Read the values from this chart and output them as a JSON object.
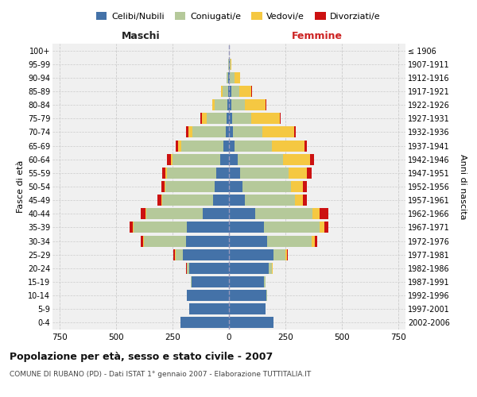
{
  "age_groups": [
    "0-4",
    "5-9",
    "10-14",
    "15-19",
    "20-24",
    "25-29",
    "30-34",
    "35-39",
    "40-44",
    "45-49",
    "50-54",
    "55-59",
    "60-64",
    "65-69",
    "70-74",
    "75-79",
    "80-84",
    "85-89",
    "90-94",
    "95-99",
    "100+"
  ],
  "birth_years": [
    "2002-2006",
    "1997-2001",
    "1992-1996",
    "1987-1991",
    "1982-1986",
    "1977-1981",
    "1972-1976",
    "1967-1971",
    "1962-1966",
    "1957-1961",
    "1952-1956",
    "1947-1951",
    "1942-1946",
    "1937-1941",
    "1932-1936",
    "1927-1931",
    "1922-1926",
    "1917-1921",
    "1912-1916",
    "1907-1911",
    "≤ 1906"
  ],
  "male": {
    "celibi": [
      215,
      175,
      185,
      165,
      175,
      205,
      190,
      185,
      115,
      70,
      65,
      55,
      40,
      25,
      15,
      10,
      8,
      4,
      2,
      0,
      0
    ],
    "coniugati": [
      0,
      0,
      2,
      2,
      10,
      30,
      185,
      235,
      250,
      225,
      215,
      220,
      210,
      185,
      145,
      90,
      55,
      25,
      8,
      2,
      0
    ],
    "vedovi": [
      0,
      0,
      0,
      0,
      2,
      5,
      5,
      5,
      5,
      5,
      5,
      5,
      8,
      15,
      20,
      20,
      10,
      5,
      2,
      0,
      0
    ],
    "divorziati": [
      0,
      0,
      0,
      0,
      2,
      5,
      10,
      15,
      20,
      15,
      15,
      15,
      15,
      10,
      8,
      5,
      2,
      0,
      0,
      0,
      0
    ]
  },
  "female": {
    "nubili": [
      195,
      160,
      165,
      155,
      175,
      195,
      170,
      155,
      115,
      70,
      60,
      50,
      38,
      25,
      18,
      15,
      12,
      10,
      5,
      2,
      0
    ],
    "coniugate": [
      2,
      2,
      2,
      5,
      15,
      55,
      195,
      245,
      255,
      220,
      215,
      215,
      200,
      165,
      130,
      85,
      60,
      35,
      20,
      5,
      0
    ],
    "vedove": [
      0,
      0,
      0,
      0,
      2,
      5,
      15,
      20,
      30,
      35,
      50,
      80,
      120,
      145,
      140,
      125,
      90,
      55,
      25,
      5,
      0
    ],
    "divorziate": [
      0,
      0,
      0,
      0,
      2,
      5,
      10,
      20,
      40,
      20,
      18,
      20,
      18,
      10,
      8,
      5,
      2,
      2,
      0,
      0,
      0
    ]
  },
  "colors": {
    "celibi": "#4472a8",
    "coniugati": "#b5c99a",
    "vedovi": "#f5c842",
    "divorziati": "#cc1111"
  },
  "title": "Popolazione per età, sesso e stato civile - 2007",
  "subtitle": "COMUNE DI RUBANO (PD) - Dati ISTAT 1° gennaio 2007 - Elaborazione TUTTITALIA.IT",
  "xlabel_left": "Maschi",
  "xlabel_right": "Femmine",
  "ylabel_left": "Fasce di età",
  "ylabel_right": "Anni di nascita",
  "xlim": 780,
  "bg_color": "#f0f0f0",
  "grid_color": "#cccccc",
  "legend_labels": [
    "Celibi/Nubili",
    "Coniugati/e",
    "Vedovi/e",
    "Divorziati/e"
  ]
}
